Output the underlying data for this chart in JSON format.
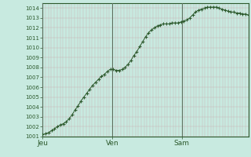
{
  "background_color": "#c8eae0",
  "plot_bg_color": "#c8eae0",
  "line_color": "#2d5a2d",
  "marker_color": "#2d5a2d",
  "grid_color_minor": "#c8b0b0",
  "grid_color_major": "#b09898",
  "day_line_color": "#607060",
  "ylim": [
    1001,
    1014.5
  ],
  "ytick_min": 1001,
  "ytick_max": 1014,
  "xtick_labels": [
    "Jeu",
    "Ven",
    "Sam"
  ],
  "xtick_positions": [
    0,
    24,
    48
  ],
  "total_hours": 71,
  "values": [
    1001.2,
    1001.3,
    1001.4,
    1001.6,
    1001.8,
    1002.0,
    1002.2,
    1002.3,
    1002.5,
    1002.8,
    1003.2,
    1003.7,
    1004.1,
    1004.6,
    1005.0,
    1005.4,
    1005.8,
    1006.2,
    1006.5,
    1006.8,
    1007.1,
    1007.3,
    1007.6,
    1007.8,
    1007.8,
    1007.7,
    1007.7,
    1007.8,
    1008.0,
    1008.3,
    1008.7,
    1009.2,
    1009.6,
    1010.1,
    1010.6,
    1011.1,
    1011.5,
    1011.8,
    1012.0,
    1012.2,
    1012.3,
    1012.4,
    1012.4,
    1012.4,
    1012.5,
    1012.5,
    1012.5,
    1012.6,
    1012.7,
    1012.8,
    1013.0,
    1013.3,
    1013.6,
    1013.8,
    1013.9,
    1014.0,
    1014.1,
    1014.1,
    1014.1,
    1014.1,
    1014.0,
    1013.9,
    1013.8,
    1013.7,
    1013.6,
    1013.6,
    1013.5,
    1013.5,
    1013.4,
    1013.4,
    1013.3
  ]
}
